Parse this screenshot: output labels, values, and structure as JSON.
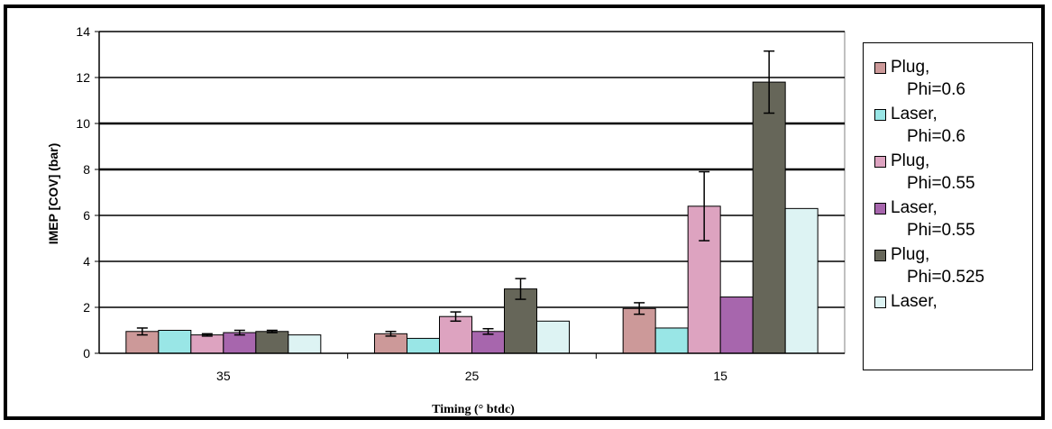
{
  "chart_data": {
    "type": "bar",
    "title": "",
    "xlabel": "Timing (° btdc)",
    "ylabel": "IMEP [COV] (bar)",
    "ylim": [
      0,
      14
    ],
    "yticks": [
      0,
      2,
      4,
      6,
      8,
      10,
      12,
      14
    ],
    "categories": [
      "35",
      "25",
      "15"
    ],
    "grid": "horizontal",
    "legend_position": "right",
    "series": [
      {
        "name": "Plug, Phi=0.6",
        "line1": "Plug,",
        "line2": "Phi=0.6",
        "color": "#cc9999",
        "values": [
          0.95,
          0.85,
          1.95
        ],
        "errors": [
          0.15,
          0.1,
          0.25
        ]
      },
      {
        "name": "Laser, Phi=0.6",
        "line1": "Laser,",
        "line2": "Phi=0.6",
        "color": "#99e6e6",
        "values": [
          1.0,
          0.65,
          1.1
        ],
        "errors": [
          0,
          0,
          0
        ]
      },
      {
        "name": "Plug, Phi=0.55",
        "line1": "Plug,",
        "line2": "Phi=0.55",
        "color": "#dda3c0",
        "values": [
          0.8,
          1.6,
          6.4
        ],
        "errors": [
          0.05,
          0.2,
          1.5
        ]
      },
      {
        "name": "Laser, Phi=0.55",
        "line1": "Laser,",
        "line2": "Phi=0.55",
        "color": "#a766ad",
        "values": [
          0.9,
          0.95,
          2.45
        ],
        "errors": [
          0.1,
          0.12,
          0
        ]
      },
      {
        "name": "Plug, Phi=0.525",
        "line1": "Plug,",
        "line2": "Phi=0.525",
        "color": "#666659",
        "values": [
          0.95,
          2.8,
          11.8
        ],
        "errors": [
          0.05,
          0.45,
          1.35
        ]
      },
      {
        "name": "Laser,",
        "line1": "Laser,",
        "line2": "",
        "color": "#ddf3f3",
        "values": [
          0.8,
          1.4,
          6.3
        ],
        "errors": [
          0,
          0,
          0
        ]
      }
    ]
  }
}
